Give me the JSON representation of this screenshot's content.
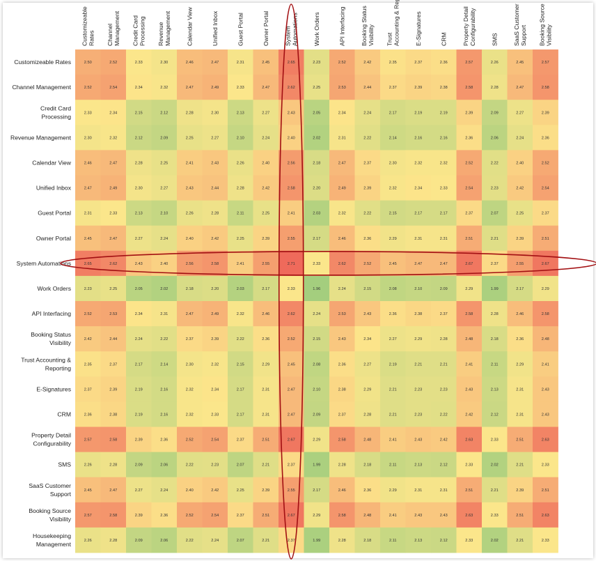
{
  "chart_data": {
    "type": "heatmap",
    "columns": [
      "Customizeable Rates",
      "Channel Management",
      "Credit Card Processing",
      "Revenue Management",
      "Calendar View",
      "Unified Inbox",
      "Guest Portal",
      "Owner Portal",
      "System Automations",
      "Work Orders",
      "API Interfacing",
      "Booking Status Visibility",
      "Trust Accounting & Reporting",
      "E-Signatures",
      "CRM",
      "Property Detail Configurability",
      "SMS",
      "SaaS Customer Support",
      "Booking Source Visibility"
    ],
    "rows": [
      "Customizeable Rates",
      "Channel Management",
      "Credit Card Processing",
      "Revenue Management",
      "Calendar View",
      "Unified Inbox",
      "Guest Portal",
      "Owner Portal",
      "System Automations",
      "Work Orders",
      "API Interfacing",
      "Booking Status Visibility",
      "Trust Accounting & Reporting",
      "E-Signatures",
      "CRM",
      "Property Detail Configurability",
      "SMS",
      "SaaS Customer Support",
      "Booking Source Visibility",
      "Housekeeping Management"
    ],
    "values": [
      [
        "2.50",
        "2.52",
        "2.33",
        "2.30",
        "2.46",
        "2.47",
        "2.31",
        "2.45",
        "2.65",
        "2.23",
        "2.52",
        "2.42",
        "2.35",
        "2.37",
        "2.36",
        "2.57",
        "2.26",
        "2.45",
        "2.57"
      ],
      [
        "2.52",
        "2.54",
        "2.34",
        "2.32",
        "2.47",
        "2.49",
        "2.33",
        "2.47",
        "2.62",
        "2.25",
        "2.53",
        "2.44",
        "2.37",
        "2.39",
        "2.38",
        "2.58",
        "2.28",
        "2.47",
        "2.58"
      ],
      [
        "2.33",
        "2.34",
        "2.15",
        "2.12",
        "2.28",
        "2.30",
        "2.13",
        "2.27",
        "2.43",
        "2.05",
        "2.34",
        "2.24",
        "2.17",
        "2.19",
        "2.19",
        "2.39",
        "2.09",
        "2.27",
        "2.39"
      ],
      [
        "2.30",
        "2.32",
        "2.12",
        "2.09",
        "2.25",
        "2.27",
        "2.10",
        "2.24",
        "2.40",
        "2.02",
        "2.31",
        "2.22",
        "2.14",
        "2.16",
        "2.16",
        "2.36",
        "2.06",
        "2.24",
        "2.36"
      ],
      [
        "2.46",
        "2.47",
        "2.28",
        "2.25",
        "2.41",
        "2.43",
        "2.26",
        "2.40",
        "2.56",
        "2.18",
        "2.47",
        "2.37",
        "2.30",
        "2.32",
        "2.32",
        "2.52",
        "2.22",
        "2.40",
        "2.52"
      ],
      [
        "2.47",
        "2.49",
        "2.30",
        "2.27",
        "2.43",
        "2.44",
        "2.28",
        "2.42",
        "2.58",
        "2.20",
        "2.49",
        "2.39",
        "2.32",
        "2.34",
        "2.33",
        "2.54",
        "2.23",
        "2.42",
        "2.54"
      ],
      [
        "2.31",
        "2.33",
        "2.13",
        "2.10",
        "2.26",
        "2.28",
        "2.11",
        "2.25",
        "2.41",
        "2.03",
        "2.32",
        "2.22",
        "2.15",
        "2.17",
        "2.17",
        "2.37",
        "2.07",
        "2.25",
        "2.37"
      ],
      [
        "2.45",
        "2.47",
        "2.27",
        "2.24",
        "2.40",
        "2.42",
        "2.25",
        "2.39",
        "2.55",
        "2.17",
        "2.46",
        "2.36",
        "2.29",
        "2.31",
        "2.31",
        "2.51",
        "2.21",
        "2.39",
        "2.51"
      ],
      [
        "2.65",
        "2.62",
        "2.43",
        "2.40",
        "2.56",
        "2.58",
        "2.41",
        "2.55",
        "2.71",
        "2.33",
        "2.62",
        "2.52",
        "2.45",
        "2.47",
        "2.47",
        "2.67",
        "2.37",
        "2.55",
        "2.67"
      ],
      [
        "2.23",
        "2.25",
        "2.05",
        "2.02",
        "2.18",
        "2.20",
        "2.03",
        "2.17",
        "2.33",
        "1.96",
        "2.24",
        "2.15",
        "2.08",
        "2.10",
        "2.09",
        "2.29",
        "1.99",
        "2.17",
        "2.29"
      ],
      [
        "2.52",
        "2.53",
        "2.34",
        "2.31",
        "2.47",
        "2.49",
        "2.32",
        "2.46",
        "2.62",
        "2.24",
        "2.53",
        "2.43",
        "2.36",
        "2.38",
        "2.37",
        "2.58",
        "2.28",
        "2.46",
        "2.58"
      ],
      [
        "2.42",
        "2.44",
        "2.24",
        "2.22",
        "2.37",
        "2.39",
        "2.22",
        "2.36",
        "2.52",
        "2.15",
        "2.43",
        "2.34",
        "2.27",
        "2.29",
        "2.28",
        "2.48",
        "2.18",
        "2.36",
        "2.48"
      ],
      [
        "2.35",
        "2.37",
        "2.17",
        "2.14",
        "2.30",
        "2.32",
        "2.15",
        "2.29",
        "2.45",
        "2.08",
        "2.36",
        "2.27",
        "2.19",
        "2.21",
        "2.21",
        "2.41",
        "2.11",
        "2.29",
        "2.41"
      ],
      [
        "2.37",
        "2.39",
        "2.19",
        "2.16",
        "2.32",
        "2.34",
        "2.17",
        "2.31",
        "2.47",
        "2.10",
        "2.38",
        "2.29",
        "2.21",
        "2.23",
        "2.23",
        "2.43",
        "2.13",
        "2.31",
        "2.43"
      ],
      [
        "2.36",
        "2.38",
        "2.19",
        "2.16",
        "2.32",
        "2.33",
        "2.17",
        "2.31",
        "2.47",
        "2.09",
        "2.37",
        "2.28",
        "2.21",
        "2.23",
        "2.22",
        "2.42",
        "2.12",
        "2.31",
        "2.43"
      ],
      [
        "2.57",
        "2.58",
        "2.39",
        "2.36",
        "2.52",
        "2.54",
        "2.37",
        "2.51",
        "2.67",
        "2.29",
        "2.58",
        "2.48",
        "2.41",
        "2.43",
        "2.42",
        "2.63",
        "2.33",
        "2.51",
        "2.63"
      ],
      [
        "2.26",
        "2.28",
        "2.09",
        "2.06",
        "2.22",
        "2.23",
        "2.07",
        "2.21",
        "2.37",
        "1.99",
        "2.28",
        "2.18",
        "2.11",
        "2.13",
        "2.12",
        "2.33",
        "2.02",
        "2.21",
        "2.33"
      ],
      [
        "2.45",
        "2.47",
        "2.27",
        "2.24",
        "2.40",
        "2.42",
        "2.25",
        "2.39",
        "2.55",
        "2.17",
        "2.46",
        "2.36",
        "2.29",
        "2.31",
        "2.31",
        "2.51",
        "2.21",
        "2.39",
        "2.51"
      ],
      [
        "2.57",
        "2.58",
        "2.39",
        "2.36",
        "2.52",
        "2.54",
        "2.37",
        "2.51",
        "2.67",
        "2.29",
        "2.58",
        "2.48",
        "2.41",
        "2.43",
        "2.43",
        "2.63",
        "2.33",
        "2.51",
        "2.63"
      ],
      [
        "2.26",
        "2.28",
        "2.09",
        "2.06",
        "2.22",
        "2.24",
        "2.07",
        "2.21",
        "2.37",
        "1.99",
        "2.28",
        "2.18",
        "2.11",
        "2.13",
        "2.12",
        "2.33",
        "2.02",
        "2.21",
        "2.33"
      ]
    ],
    "value_range": [
      1.96,
      2.71
    ],
    "color_scale": [
      "#a4ce7e",
      "#fce68b",
      "#ef6a5b"
    ],
    "grid": false,
    "legend": "none",
    "highlight": {
      "row": "System Automations",
      "column": "System Automations",
      "color": "#a20f12"
    }
  }
}
